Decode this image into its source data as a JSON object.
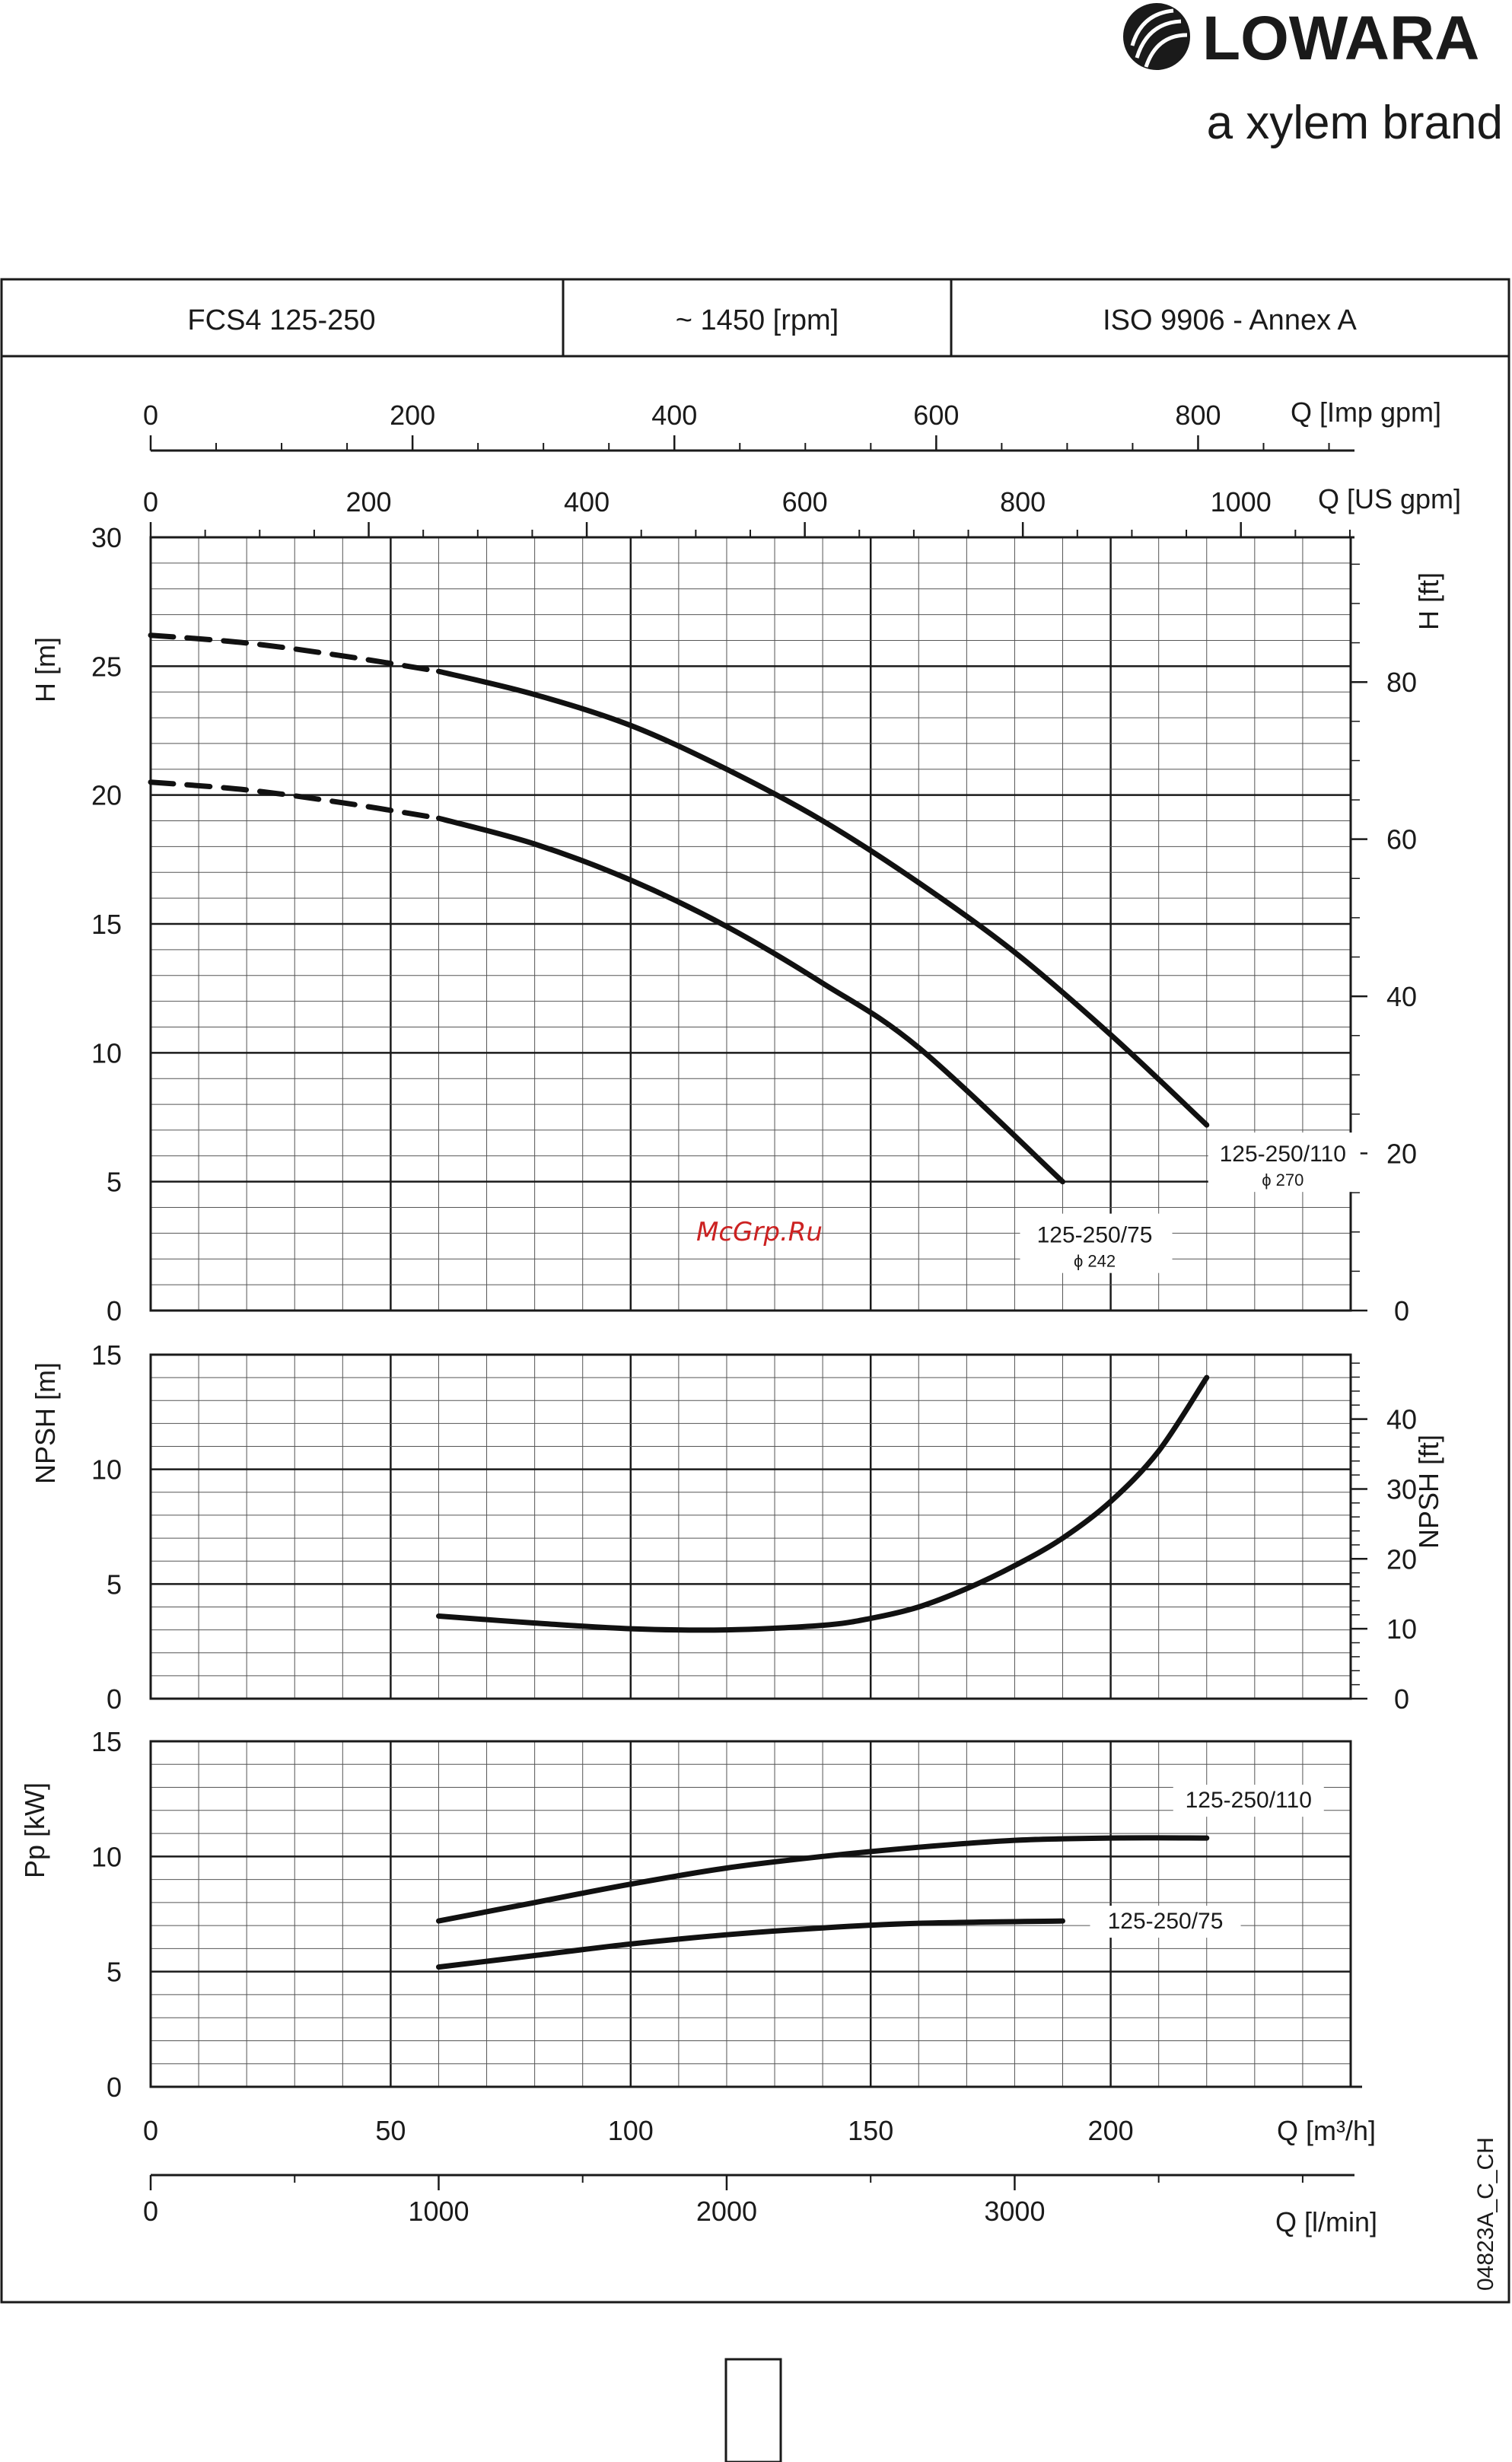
{
  "brand": {
    "name": "LOWARA",
    "tagline": "a xylem brand"
  },
  "header": {
    "model": "FCS4 125-250",
    "speed": "~ 1450 [rpm]",
    "standard": "ISO 9906 - Annex A"
  },
  "watermark": "McGrp.Ru",
  "drawing_code": "04823A_C_CH",
  "axes": {
    "q_imp_gpm": {
      "label": "Q [Imp gpm]",
      "ticks": [
        "0",
        "200",
        "400",
        "600",
        "800"
      ]
    },
    "q_us_gpm": {
      "label": "Q [US gpm]",
      "ticks": [
        "0",
        "200",
        "400",
        "600",
        "800",
        "1000"
      ]
    },
    "q_m3h": {
      "label": "Q [m³/h]",
      "ticks": [
        "0",
        "50",
        "100",
        "150",
        "200"
      ]
    },
    "q_lmin": {
      "label": "Q [l/min]",
      "ticks": [
        "0",
        "1000",
        "2000",
        "3000"
      ]
    }
  },
  "chart_data": [
    {
      "type": "line",
      "panel": "head",
      "xlabel": "Q [m³/h]",
      "ylabel": "H [m]",
      "ylabel_right": "H [ft]",
      "xlim": [
        0,
        250
      ],
      "ylim": [
        0,
        30
      ],
      "y_ticks": [
        "0",
        "5",
        "10",
        "15",
        "20",
        "25",
        "30"
      ],
      "y_right_ticks": [
        "0",
        "20",
        "40",
        "60",
        "80"
      ],
      "series": [
        {
          "name": "125-250/110",
          "sub": "ϕ 270",
          "x": [
            0,
            20,
            40,
            60,
            80,
            100,
            120,
            140,
            160,
            180,
            200,
            220
          ],
          "y": [
            26.2,
            25.9,
            25.4,
            24.8,
            23.9,
            22.7,
            21.0,
            19.0,
            16.6,
            13.9,
            10.7,
            7.2
          ],
          "dashed_until": 50
        },
        {
          "name": "125-250/75",
          "sub": "ϕ 242",
          "x": [
            0,
            20,
            40,
            60,
            80,
            100,
            120,
            140,
            160,
            190
          ],
          "y": [
            20.5,
            20.2,
            19.7,
            19.1,
            18.1,
            16.7,
            14.9,
            12.7,
            10.2,
            5.0
          ],
          "dashed_until": 60
        }
      ]
    },
    {
      "type": "line",
      "panel": "npsh",
      "xlabel": "Q [m³/h]",
      "ylabel": "NPSH [m]",
      "ylabel_right": "NPSH [ft]",
      "xlim": [
        0,
        250
      ],
      "ylim": [
        0,
        15
      ],
      "y_ticks": [
        "0",
        "5",
        "10",
        "15"
      ],
      "y_right_ticks": [
        "0",
        "10",
        "20",
        "30",
        "40"
      ],
      "series": [
        {
          "name": "",
          "x": [
            60,
            80,
            100,
            120,
            140,
            150,
            160,
            170,
            180,
            190,
            200,
            210,
            220
          ],
          "y": [
            3.6,
            3.3,
            3.05,
            3.0,
            3.2,
            3.5,
            4.0,
            4.8,
            5.8,
            7.0,
            8.6,
            10.8,
            14.0
          ]
        }
      ]
    },
    {
      "type": "line",
      "panel": "power",
      "xlabel": "Q [m³/h]",
      "ylabel": "Pp [kW]",
      "xlim": [
        0,
        250
      ],
      "ylim": [
        0,
        15
      ],
      "y_ticks": [
        "0",
        "5",
        "10",
        "15"
      ],
      "series": [
        {
          "name": "125-250/110",
          "x": [
            60,
            80,
            100,
            120,
            140,
            160,
            180,
            200,
            220
          ],
          "y": [
            7.2,
            8.0,
            8.8,
            9.5,
            10.0,
            10.4,
            10.7,
            10.8,
            10.8
          ]
        },
        {
          "name": "125-250/75",
          "x": [
            60,
            80,
            100,
            120,
            140,
            160,
            190
          ],
          "y": [
            5.2,
            5.7,
            6.2,
            6.6,
            6.9,
            7.1,
            7.2
          ]
        }
      ]
    }
  ]
}
